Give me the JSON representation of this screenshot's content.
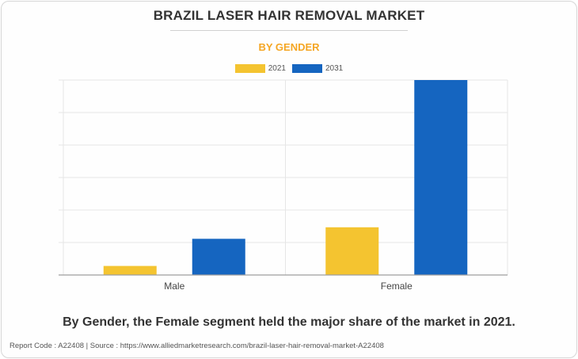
{
  "title": "BRAZIL LASER HAIR REMOVAL MARKET",
  "subtitle": "BY GENDER",
  "caption": "By Gender, the Female segment held the major share of the market in 2021.",
  "footer": "Report Code : A22408  |  Source : https://www.alliedmarketresearch.com/brazil-laser-hair-removal-market-A22408",
  "colors": {
    "series_2021": "#f4c430",
    "series_2031": "#1565c0",
    "title": "#333333",
    "subtitle": "#f5a623",
    "grid": "#e6e6e6",
    "axis": "#9e9e9e"
  },
  "chart_data": {
    "type": "bar",
    "categories": [
      "Male",
      "Female"
    ],
    "series": [
      {
        "name": "2021",
        "values": [
          11,
          58
        ]
      },
      {
        "name": "2031",
        "values": [
          44,
          237
        ]
      }
    ],
    "ylim": [
      0,
      237
    ],
    "y_gridlines": 6,
    "grid": true,
    "y_tick_labels_shown": false,
    "legend_position": "top-center",
    "xlabel": "",
    "ylabel": ""
  }
}
